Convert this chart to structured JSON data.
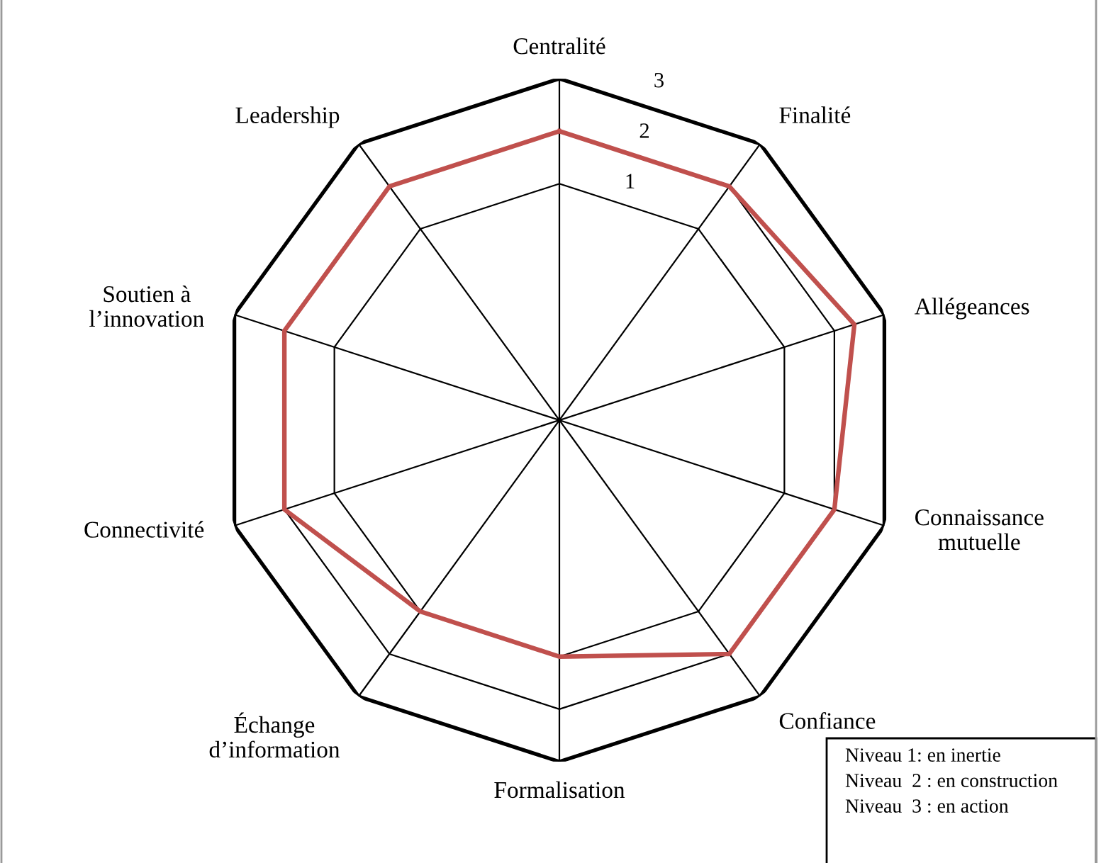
{
  "chart_data": {
    "type": "radar",
    "categories": [
      "Centralité",
      "Finalité",
      "Allégeances",
      "Connaissance\nmutuelle",
      "Confiance",
      "Formalisation",
      "Échange\nd’information",
      "Connectivité",
      "Soutien à\nl’innovation",
      "Leadership"
    ],
    "series": [
      {
        "color": "#c0504d",
        "values": [
          2,
          2,
          2.4,
          2,
          2,
          1,
          1,
          2,
          2,
          2
        ]
      }
    ],
    "ylim": [
      -3.5,
      3
    ],
    "yticks": [
      1,
      2,
      3
    ],
    "grid": true,
    "annotations": [
      "Niveau 1: en inertie",
      "Niveau  2 : en construction",
      "Niveau  3 : en action"
    ]
  }
}
